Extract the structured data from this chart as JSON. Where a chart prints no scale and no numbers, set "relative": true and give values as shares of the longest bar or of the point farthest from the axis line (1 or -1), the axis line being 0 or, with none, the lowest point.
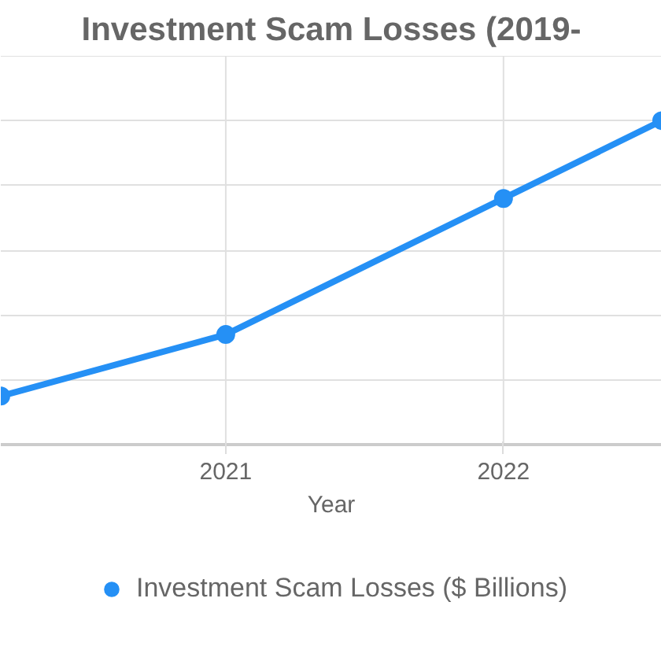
{
  "chart_data": {
    "type": "line",
    "title": "Investment Scam Losses (2019-",
    "xlabel": "Year",
    "relative": true,
    "x": [
      2020.19,
      2021,
      2022,
      2022.57
    ],
    "series": [
      {
        "name": "Investment Scam Losses ($ Billions)",
        "color": "#2590f5",
        "values": [
          0.15,
          0.34,
          0.76,
          1.0
        ]
      }
    ],
    "xlim": [
      2020.19,
      2022.57
    ],
    "xticks": [
      2021,
      2022
    ],
    "grid": true,
    "legend": "bottom",
    "marker": "circle",
    "line_style": "solid"
  }
}
